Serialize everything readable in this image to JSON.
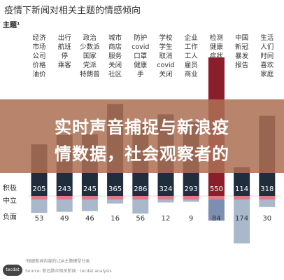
{
  "header": {
    "title": "疫情下新闻对相关主题的情感倾向",
    "topic_label": "主题¹"
  },
  "banner": {
    "line1": "实时声音捕捉与新浪疫",
    "line2": "情数据，社会观察者的"
  },
  "footer": {
    "footnote": "¹根据新闻内容的LDA主题模型分类",
    "source": "Source: 新冠肺炎相关新闻 · tecdat analysis",
    "logo_text": "tecdat"
  },
  "colors": {
    "positive": "#1f2d3d",
    "neutral": "#e07a86",
    "negative": "#aab8cc",
    "highlight_positive": "#8b1e2b",
    "highlight_negative": "#7d8fb0"
  },
  "chart_data": {
    "type": "bar",
    "stacked": "diverging",
    "categories": [
      "经济市场公司价格油价",
      "出行航班停乘客",
      "政治少数派国家党派特朗普",
      "城市商店服务关闭社区",
      "防护covid口罩健康手",
      "学校学生取消covid关闭",
      "企业工作工人雇员商业",
      "检测健康症状医院测试",
      "中国新冠暴发报告",
      "生活人们时间喜欢家庭"
    ],
    "category_lines": [
      [
        "经济",
        "市场",
        "公司",
        "价格",
        "油价"
      ],
      [
        "出行",
        "航班",
        "停",
        "乘客"
      ],
      [
        "政治",
        "少数派",
        "国家",
        "党派",
        "特朗普"
      ],
      [
        "城市",
        "商店",
        "服务",
        "关闭",
        "社区"
      ],
      [
        "防护",
        "covid",
        "口罩",
        "健康",
        "手"
      ],
      [
        "学校",
        "学生",
        "取消",
        "covid",
        "关闭"
      ],
      [
        "企业",
        "工作",
        "工人",
        "雇员",
        "商业"
      ],
      [
        "检测",
        "健康",
        "症状",
        "医院",
        "测试"
      ],
      [
        "中国",
        "新冠",
        "暴发",
        "报告"
      ],
      [
        "生活",
        "人们",
        "时间",
        "喜欢",
        "家庭"
      ]
    ],
    "row_labels": [
      "积极",
      "中立",
      "负面"
    ],
    "series": [
      {
        "name": "积极",
        "values": [
          205,
          243,
          245,
          365,
          286,
          324,
          293,
          550,
          114,
          318
        ]
      },
      {
        "name": "中立",
        "values": [
          3,
          9,
          7,
          5,
          5,
          2,
          3,
          13,
          9,
          5
        ]
      },
      {
        "name": "负面",
        "values": [
          53,
          49,
          46,
          16,
          56,
          12,
          9,
          84,
          174,
          30
        ]
      }
    ],
    "highlight_index": 7
  }
}
